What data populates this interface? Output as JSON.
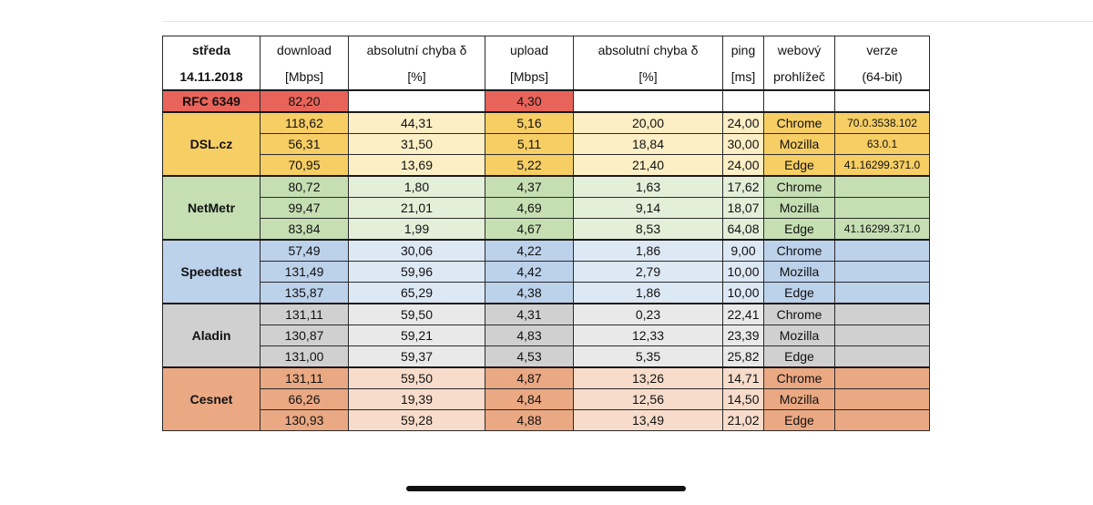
{
  "header": {
    "row1": [
      "středa",
      "download",
      "absolutní chyba δ",
      "upload",
      "absolutní chyba δ",
      "ping",
      "webový",
      "verze"
    ],
    "row2": [
      "14.11.2018",
      "[Mbps]",
      "[%]",
      "[Mbps]",
      "[%]",
      "[ms]",
      "prohlížeč",
      "(64-bit)"
    ]
  },
  "reference": {
    "name": "RFC 6349",
    "download": "82,20",
    "upload": "4,30"
  },
  "groups": [
    {
      "name": "DSL.cz",
      "rows": [
        {
          "download": "118,62",
          "dl_err": "44,31",
          "upload": "5,16",
          "ul_err": "20,00",
          "ping": "24,00",
          "browser": "Chrome",
          "version": "70.0.3538.102"
        },
        {
          "download": "56,31",
          "dl_err": "31,50",
          "upload": "5,11",
          "ul_err": "18,84",
          "ping": "30,00",
          "browser": "Mozilla",
          "version": "63.0.1"
        },
        {
          "download": "70,95",
          "dl_err": "13,69",
          "upload": "5,22",
          "ul_err": "21,40",
          "ping": "24,00",
          "browser": "Edge",
          "version": "41.16299.371.0"
        }
      ]
    },
    {
      "name": "NetMetr",
      "rows": [
        {
          "download": "80,72",
          "dl_err": "1,80",
          "upload": "4,37",
          "ul_err": "1,63",
          "ping": "17,62",
          "browser": "Chrome",
          "version": ""
        },
        {
          "download": "99,47",
          "dl_err": "21,01",
          "upload": "4,69",
          "ul_err": "9,14",
          "ping": "18,07",
          "browser": "Mozilla",
          "version": ""
        },
        {
          "download": "83,84",
          "dl_err": "1,99",
          "upload": "4,67",
          "ul_err": "8,53",
          "ping": "64,08",
          "browser": "Edge",
          "version": "41.16299.371.0"
        }
      ]
    },
    {
      "name": "Speedtest",
      "rows": [
        {
          "download": "57,49",
          "dl_err": "30,06",
          "upload": "4,22",
          "ul_err": "1,86",
          "ping": "9,00",
          "browser": "Chrome",
          "version": ""
        },
        {
          "download": "131,49",
          "dl_err": "59,96",
          "upload": "4,42",
          "ul_err": "2,79",
          "ping": "10,00",
          "browser": "Mozilla",
          "version": ""
        },
        {
          "download": "135,87",
          "dl_err": "65,29",
          "upload": "4,38",
          "ul_err": "1,86",
          "ping": "10,00",
          "browser": "Edge",
          "version": ""
        }
      ]
    },
    {
      "name": "Aladin",
      "rows": [
        {
          "download": "131,11",
          "dl_err": "59,50",
          "upload": "4,31",
          "ul_err": "0,23",
          "ping": "22,41",
          "browser": "Chrome",
          "version": ""
        },
        {
          "download": "130,87",
          "dl_err": "59,21",
          "upload": "4,83",
          "ul_err": "12,33",
          "ping": "23,39",
          "browser": "Mozilla",
          "version": ""
        },
        {
          "download": "131,00",
          "dl_err": "59,37",
          "upload": "4,53",
          "ul_err": "5,35",
          "ping": "25,82",
          "browser": "Edge",
          "version": ""
        }
      ]
    },
    {
      "name": "Cesnet",
      "rows": [
        {
          "download": "131,11",
          "dl_err": "59,50",
          "upload": "4,87",
          "ul_err": "13,26",
          "ping": "14,71",
          "browser": "Chrome",
          "version": ""
        },
        {
          "download": "66,26",
          "dl_err": "19,39",
          "upload": "4,84",
          "ul_err": "12,56",
          "ping": "14,50",
          "browser": "Mozilla",
          "version": ""
        },
        {
          "download": "130,93",
          "dl_err": "59,28",
          "upload": "4,88",
          "ul_err": "13,49",
          "ping": "21,02",
          "browser": "Edge",
          "version": ""
        }
      ]
    }
  ],
  "colors": {
    "reference": "#e8645a",
    "dsl": "#f7ce64",
    "dsl_light": "#fdefc5",
    "netmetr": "#c5dfb3",
    "netmetr_light": "#e3efd8",
    "speedtest": "#bcd1ea",
    "speedtest_light": "#dde8f5",
    "aladin": "#d0d0d0",
    "aladin_light": "#e9e9e9",
    "cesnet": "#eaa883",
    "cesnet_light": "#f8dccb"
  }
}
